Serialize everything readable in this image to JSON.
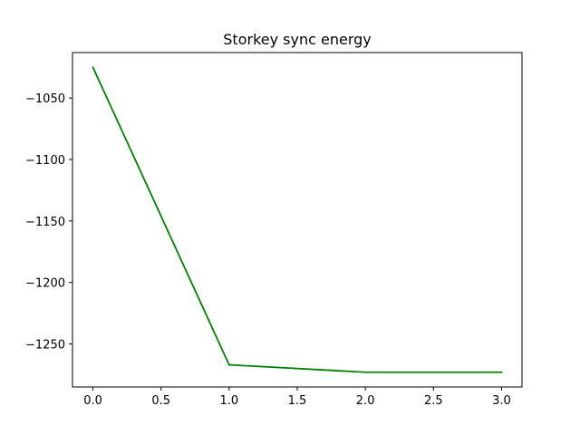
{
  "chart_data": {
    "type": "line",
    "title": "Storkey sync energy",
    "xlabel": "",
    "ylabel": "",
    "xlim": [
      -0.15,
      3.15
    ],
    "ylim": [
      -1285,
      -1013
    ],
    "x_ticks": [
      0.0,
      0.5,
      1.0,
      1.5,
      2.0,
      2.5,
      3.0
    ],
    "x_tick_labels": [
      "0.0",
      "0.5",
      "1.0",
      "1.5",
      "2.0",
      "2.5",
      "3.0"
    ],
    "y_ticks": [
      -1050,
      -1100,
      -1150,
      -1200,
      -1250
    ],
    "y_tick_labels": [
      "−1050",
      "−1100",
      "−1150",
      "−1200",
      "−1250"
    ],
    "grid": false,
    "series": [
      {
        "color": "#008000",
        "x": [
          0,
          1,
          2,
          3
        ],
        "y": [
          -1025,
          -1267,
          -1273,
          -1273
        ]
      }
    ]
  }
}
